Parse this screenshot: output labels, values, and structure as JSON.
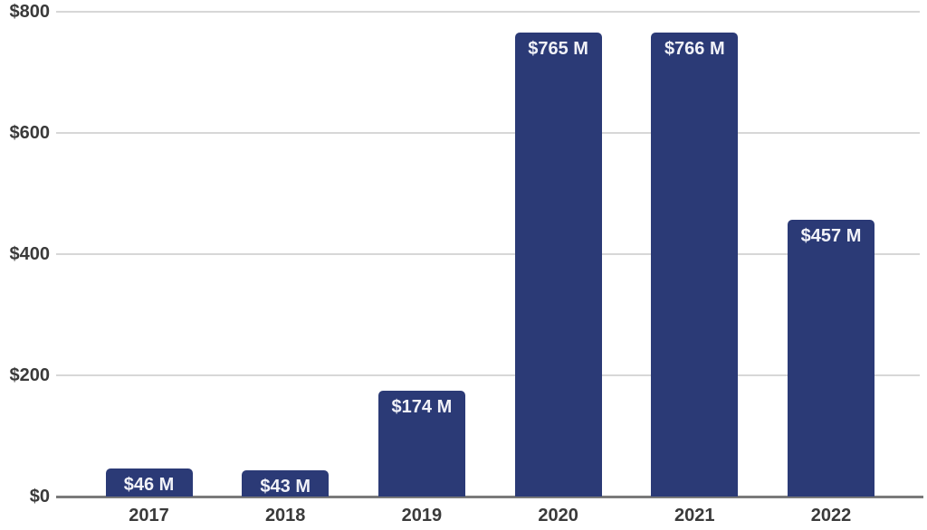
{
  "chart_data": {
    "type": "bar",
    "title": "",
    "xlabel": "",
    "ylabel": "",
    "categories": [
      "2017",
      "2018",
      "2019",
      "2020",
      "2021",
      "2022"
    ],
    "values": [
      46,
      43,
      174,
      765,
      766,
      457
    ],
    "bar_labels": [
      "$46 M",
      "$43 M",
      "$174 M",
      "$765 M",
      "$766 M",
      "$457 M"
    ],
    "ylim": [
      0,
      800
    ],
    "yticks": [
      0,
      200,
      400,
      600,
      800
    ],
    "ytick_labels": [
      "$0",
      "$200",
      "$400",
      "$600",
      "$800"
    ],
    "grid": true,
    "legend": false,
    "colors": {
      "bar": "#2b3a76",
      "gridline": "#d7d7d7",
      "axis_line": "#7a7a7a",
      "tick_text": "#3a3a3a",
      "bar_label_text": "#f1f2f8"
    }
  }
}
